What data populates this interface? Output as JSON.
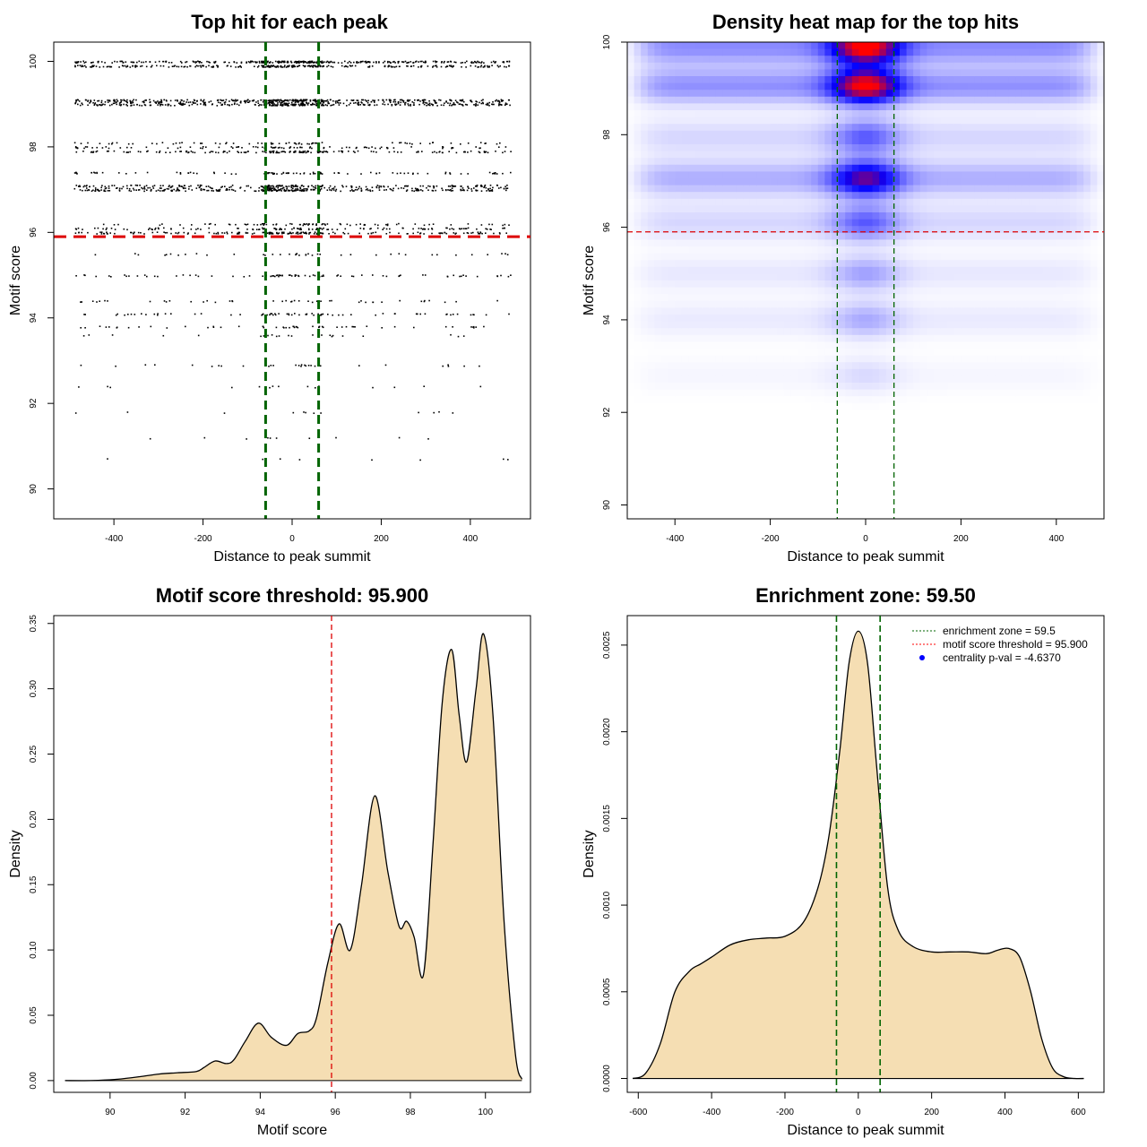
{
  "chart_data": [
    {
      "id": "scatter",
      "type": "scatter",
      "title": "Top hit for each peak",
      "xlabel": "Distance to peak summit",
      "ylabel": "Motif score",
      "xlim": [
        -535,
        535
      ],
      "ylim": [
        89.3,
        100.45
      ],
      "xticks": [
        -400,
        -200,
        0,
        200,
        400
      ],
      "yticks": [
        90,
        92,
        94,
        96,
        98,
        100
      ],
      "vlines": [
        -59.5,
        59.5
      ],
      "hline": 95.9,
      "point_bands": [
        {
          "score": 100.0,
          "count": 330
        },
        {
          "score": 99.9,
          "count": 260
        },
        {
          "score": 99.1,
          "count": 300
        },
        {
          "score": 99.05,
          "count": 180
        },
        {
          "score": 99.0,
          "count": 260
        },
        {
          "score": 98.1,
          "count": 70
        },
        {
          "score": 98.0,
          "count": 90
        },
        {
          "score": 97.9,
          "count": 160
        },
        {
          "score": 97.4,
          "count": 100
        },
        {
          "score": 97.1,
          "count": 170
        },
        {
          "score": 97.05,
          "count": 120
        },
        {
          "score": 97.0,
          "count": 230
        },
        {
          "score": 96.2,
          "count": 80
        },
        {
          "score": 96.1,
          "count": 120
        },
        {
          "score": 96.0,
          "count": 170
        },
        {
          "score": 95.5,
          "count": 40
        },
        {
          "score": 95.0,
          "count": 80
        },
        {
          "score": 94.4,
          "count": 45
        },
        {
          "score": 94.1,
          "count": 70
        },
        {
          "score": 93.8,
          "count": 55
        },
        {
          "score": 93.6,
          "count": 25
        },
        {
          "score": 92.9,
          "count": 30
        },
        {
          "score": 92.4,
          "count": 15
        },
        {
          "score": 91.8,
          "count": 12
        },
        {
          "score": 91.2,
          "count": 10
        },
        {
          "score": 90.7,
          "count": 8
        }
      ]
    },
    {
      "id": "heatmap",
      "type": "heatmap",
      "title": "Density heat map for the top hits",
      "xlabel": "Distance to peak summit",
      "ylabel": "Motif score",
      "xlim": [
        -500,
        500
      ],
      "ylim": [
        89.7,
        100
      ],
      "xticks": [
        -400,
        -200,
        0,
        200,
        400
      ],
      "yticks": [
        90,
        92,
        94,
        96,
        98,
        100
      ],
      "vlines": [
        -59.5,
        59.5
      ],
      "hline": 95.9,
      "colors": {
        "low": "#ffffff",
        "mid": "#0000ff",
        "high": "#ff0000"
      },
      "density_bands": [
        {
          "score": 99.9,
          "weight": 1.0
        },
        {
          "score": 99.05,
          "weight": 0.95
        },
        {
          "score": 97.95,
          "weight": 0.35
        },
        {
          "score": 97.05,
          "weight": 0.7
        },
        {
          "score": 96.1,
          "weight": 0.35
        },
        {
          "score": 95.0,
          "weight": 0.2
        },
        {
          "score": 94.0,
          "weight": 0.18
        },
        {
          "score": 92.8,
          "weight": 0.08
        }
      ]
    },
    {
      "id": "score-density",
      "type": "area",
      "title": "Motif score threshold: 95.900",
      "xlabel": "Motif score",
      "ylabel": "Density",
      "xlim": [
        88.5,
        101.2
      ],
      "ylim": [
        -0.009,
        0.356
      ],
      "xticks": [
        90,
        92,
        94,
        96,
        98,
        100
      ],
      "yticks": [
        0.0,
        0.05,
        0.1,
        0.15,
        0.2,
        0.25,
        0.3,
        0.35
      ],
      "ytick_labels": [
        "0.00",
        "0.05",
        "0.10",
        "0.15",
        "0.20",
        "0.25",
        "0.30",
        "0.35"
      ],
      "vline": 95.9,
      "fill": "#f5deb3",
      "x": [
        88.8,
        89.5,
        90.2,
        90.8,
        91.3,
        91.8,
        92.3,
        92.5,
        92.8,
        93.1,
        93.3,
        93.6,
        93.95,
        94.3,
        94.7,
        95.0,
        95.3,
        95.5,
        95.8,
        96.1,
        96.4,
        96.7,
        97.05,
        97.4,
        97.7,
        97.9,
        98.1,
        98.35,
        98.6,
        98.85,
        99.1,
        99.3,
        99.5,
        99.75,
        99.95,
        100.2,
        100.5,
        100.8,
        100.97
      ],
      "y": [
        0.0,
        0.0,
        0.001,
        0.003,
        0.005,
        0.006,
        0.007,
        0.01,
        0.015,
        0.013,
        0.016,
        0.03,
        0.044,
        0.033,
        0.027,
        0.036,
        0.038,
        0.048,
        0.09,
        0.12,
        0.1,
        0.15,
        0.218,
        0.16,
        0.118,
        0.122,
        0.11,
        0.081,
        0.18,
        0.29,
        0.33,
        0.28,
        0.244,
        0.3,
        0.342,
        0.28,
        0.12,
        0.02,
        0.001
      ]
    },
    {
      "id": "distance-density",
      "type": "area",
      "title": "Enrichment zone: 59.50",
      "xlabel": "Distance to peak summit",
      "ylabel": "Density",
      "xlim": [
        -630,
        670
      ],
      "ylim": [
        -8e-05,
        0.00267
      ],
      "xticks": [
        -600,
        -400,
        -200,
        0,
        200,
        400,
        600
      ],
      "yticks": [
        0.0,
        0.0005,
        0.001,
        0.0015,
        0.002,
        0.0025
      ],
      "ytick_labels": [
        "0.0000",
        "0.0005",
        "0.0010",
        "0.0015",
        "0.0020",
        "0.0025"
      ],
      "vlines": [
        -59.5,
        59.5
      ],
      "fill": "#f5deb3",
      "x": [
        -615,
        -580,
        -540,
        -500,
        -460,
        -430,
        -400,
        -350,
        -300,
        -250,
        -200,
        -150,
        -110,
        -80,
        -50,
        -25,
        0,
        25,
        50,
        80,
        110,
        150,
        200,
        250,
        300,
        350,
        380,
        410,
        440,
        470,
        500,
        530,
        560,
        590,
        615
      ],
      "y": [
        0.0,
        3e-05,
        0.0002,
        0.0005,
        0.00062,
        0.00066,
        0.0007,
        0.00077,
        0.0008,
        0.00081,
        0.00082,
        0.0009,
        0.0011,
        0.0014,
        0.0019,
        0.0024,
        0.00258,
        0.0024,
        0.0018,
        0.0011,
        0.00085,
        0.00076,
        0.00073,
        0.00073,
        0.00073,
        0.00072,
        0.00074,
        0.00075,
        0.0007,
        0.0005,
        0.00023,
        6e-05,
        1e-05,
        0.0,
        0.0
      ]
    }
  ],
  "legend": {
    "items": [
      {
        "label": "enrichment zone = 59.5",
        "style": "dotted",
        "color": "#006400"
      },
      {
        "label": "motif score threshold = 95.900",
        "style": "dotted",
        "color": "#ff0000"
      },
      {
        "label": "centrality p-val = -4.6370",
        "style": "point",
        "color": "#0000ff"
      }
    ]
  },
  "colors": {
    "zone_line": "#006400",
    "threshold_line": "#dd0000",
    "points": "#000000",
    "axis": "#000000"
  }
}
